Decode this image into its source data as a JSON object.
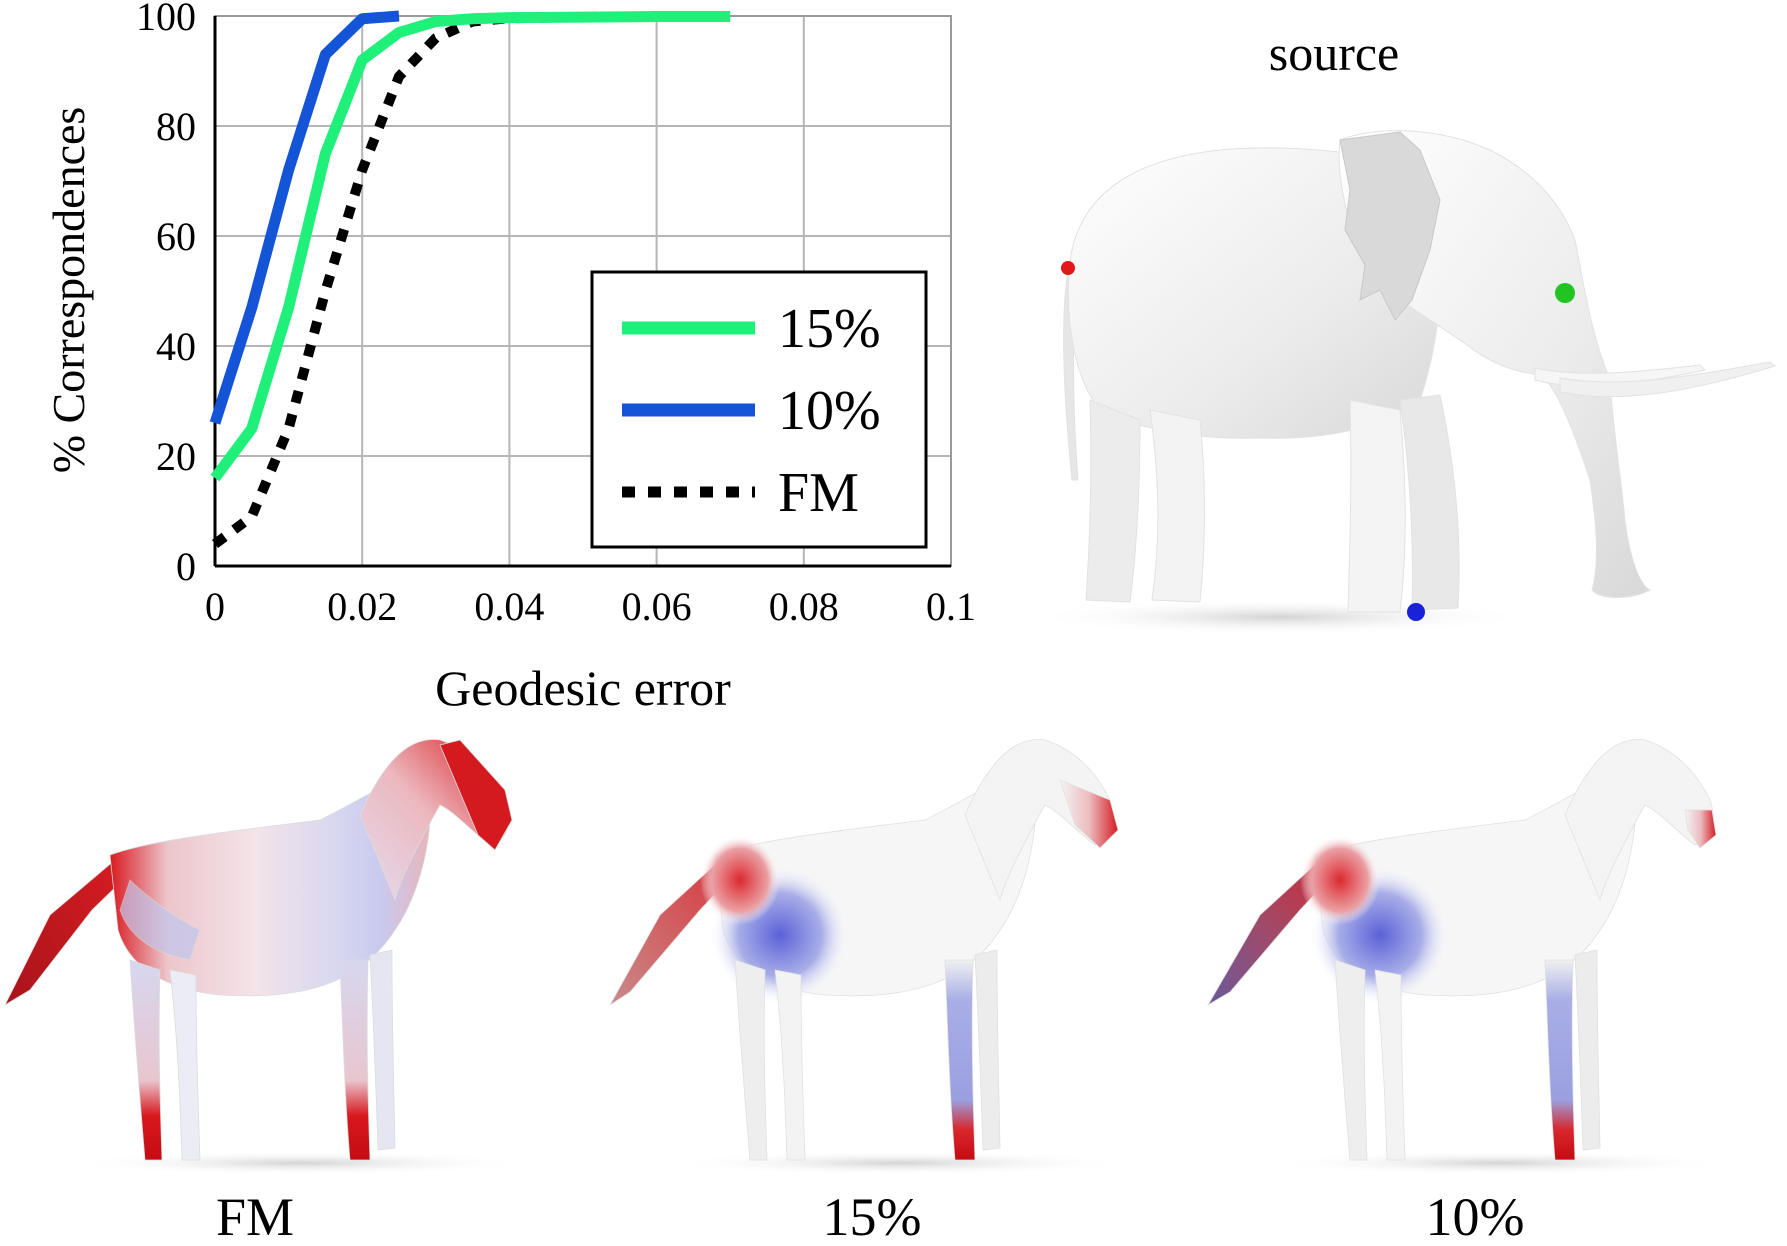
{
  "chart_data": {
    "type": "line",
    "xlabel": "Geodesic error",
    "ylabel": "% Correspondences",
    "xlim": [
      0,
      0.1
    ],
    "ylim": [
      0,
      100
    ],
    "xticks": [
      "0",
      "0.02",
      "0.04",
      "0.06",
      "0.08",
      "0.1"
    ],
    "yticks": [
      "0",
      "20",
      "40",
      "60",
      "80",
      "100"
    ],
    "grid": true,
    "legend_position": "right",
    "series": [
      {
        "name": "15%",
        "color": "#1ef07a",
        "style": "solid",
        "x": [
          0,
          0.005,
          0.01,
          0.015,
          0.02,
          0.025,
          0.03,
          0.035,
          0.04,
          0.05,
          0.06,
          0.07
        ],
        "y": [
          16,
          25,
          47,
          75,
          92,
          97,
          99,
          99.5,
          99.7,
          99.8,
          99.9,
          99.9
        ]
      },
      {
        "name": "10%",
        "color": "#1454d6",
        "style": "solid",
        "x": [
          0,
          0.005,
          0.01,
          0.015,
          0.02,
          0.025
        ],
        "y": [
          26,
          47,
          72,
          93,
          99.5,
          100
        ]
      },
      {
        "name": "FM",
        "color": "#000000",
        "style": "dotted",
        "x": [
          0,
          0.005,
          0.01,
          0.015,
          0.02,
          0.025,
          0.03,
          0.035,
          0.04,
          0.05,
          0.06,
          0.07
        ],
        "y": [
          4,
          9,
          25,
          50,
          72,
          89,
          96,
          99,
          99.6,
          99.8,
          99.9,
          99.9
        ]
      }
    ]
  },
  "panels": {
    "source_label": "source",
    "captions": [
      "FM",
      "15%",
      "10%"
    ]
  },
  "colors": {
    "error_high": "#d40f14",
    "error_low": "#4a55d8",
    "mesh_base": "#f2f2f2"
  }
}
